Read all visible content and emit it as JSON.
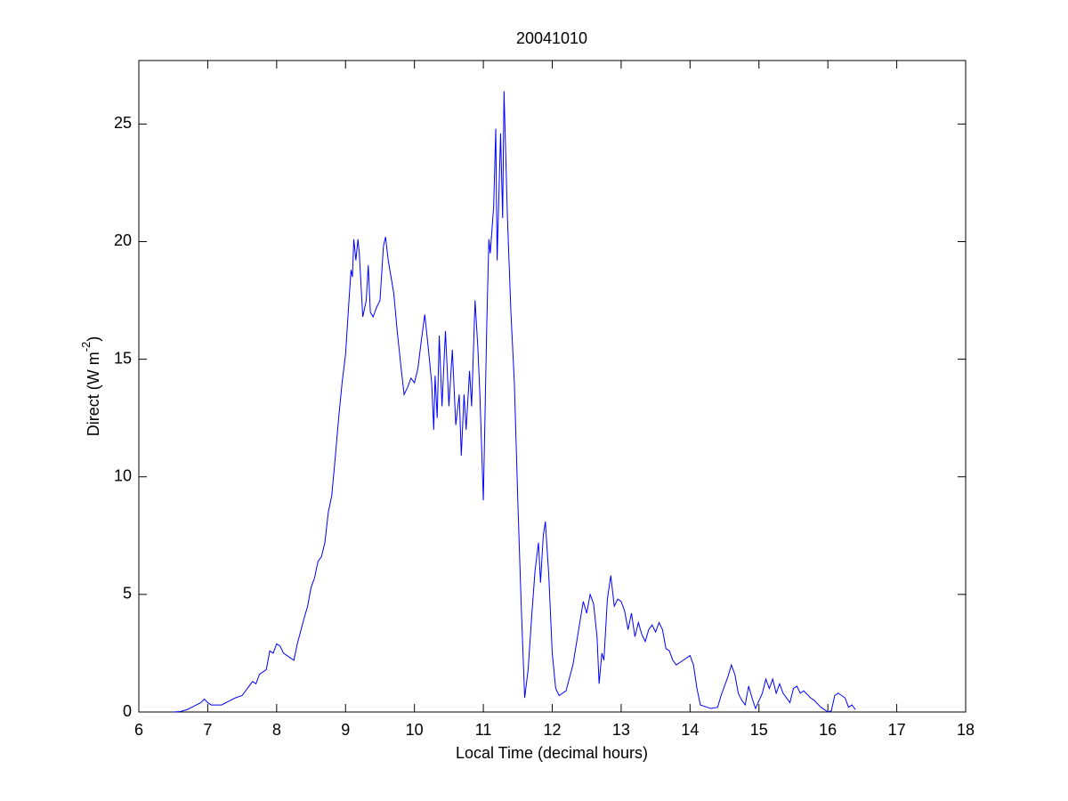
{
  "chart_data": {
    "type": "line",
    "title": "20041010",
    "xlabel": "Local Time (decimal hours)",
    "ylabel": {
      "text": "Direct (W m",
      "superscript": "-2",
      "suffix": ")"
    },
    "xlim": [
      6,
      18
    ],
    "ylim": [
      0,
      27.7
    ],
    "xticks": [
      6,
      7,
      8,
      9,
      10,
      11,
      12,
      13,
      14,
      15,
      16,
      17,
      18
    ],
    "yticks": [
      0,
      5,
      10,
      15,
      20,
      25
    ],
    "grid": false,
    "x": [
      6.5,
      6.6,
      6.7,
      6.8,
      6.9,
      6.95,
      7.0,
      7.05,
      7.2,
      7.3,
      7.4,
      7.5,
      7.6,
      7.65,
      7.7,
      7.75,
      7.85,
      7.9,
      7.95,
      8.0,
      8.05,
      8.1,
      8.2,
      8.25,
      8.3,
      8.4,
      8.45,
      8.5,
      8.55,
      8.6,
      8.65,
      8.7,
      8.75,
      8.8,
      8.85,
      8.9,
      8.95,
      9.0,
      9.05,
      9.08,
      9.1,
      9.12,
      9.15,
      9.18,
      9.2,
      9.25,
      9.3,
      9.33,
      9.36,
      9.4,
      9.45,
      9.5,
      9.55,
      9.58,
      9.62,
      9.7,
      9.75,
      9.8,
      9.85,
      9.9,
      9.95,
      10.0,
      10.05,
      10.1,
      10.15,
      10.2,
      10.25,
      10.28,
      10.3,
      10.33,
      10.36,
      10.4,
      10.45,
      10.5,
      10.55,
      10.6,
      10.65,
      10.68,
      10.72,
      10.75,
      10.8,
      10.83,
      10.88,
      10.92,
      10.95,
      11.0,
      11.05,
      11.08,
      11.1,
      11.15,
      11.18,
      11.2,
      11.25,
      11.28,
      11.3,
      11.35,
      11.4,
      11.45,
      11.5,
      11.55,
      11.6,
      11.65,
      11.7,
      11.75,
      11.8,
      11.83,
      11.87,
      11.9,
      11.95,
      12.0,
      12.05,
      12.1,
      12.2,
      12.3,
      12.4,
      12.45,
      12.5,
      12.55,
      12.6,
      12.65,
      12.68,
      12.72,
      12.75,
      12.8,
      12.85,
      12.9,
      12.95,
      13.0,
      13.05,
      13.1,
      13.15,
      13.2,
      13.25,
      13.3,
      13.35,
      13.4,
      13.45,
      13.5,
      13.55,
      13.6,
      13.65,
      13.7,
      13.75,
      13.8,
      13.9,
      14.0,
      14.05,
      14.1,
      14.15,
      14.3,
      14.4,
      14.45,
      14.55,
      14.6,
      14.65,
      14.7,
      14.75,
      14.8,
      14.85,
      14.9,
      14.95,
      15.05,
      15.1,
      15.15,
      15.2,
      15.25,
      15.3,
      15.35,
      15.45,
      15.5,
      15.55,
      15.6,
      15.65,
      15.75,
      15.8,
      15.9,
      16.0,
      16.05,
      16.1,
      16.15,
      16.2,
      16.25,
      16.3,
      16.35,
      16.4
    ],
    "series": [
      {
        "name": "Direct",
        "color": "#0000ff",
        "values": [
          0,
          0.02,
          0.1,
          0.25,
          0.4,
          0.55,
          0.4,
          0.3,
          0.3,
          0.45,
          0.6,
          0.7,
          1.1,
          1.3,
          1.2,
          1.6,
          1.8,
          2.6,
          2.5,
          2.9,
          2.8,
          2.5,
          2.3,
          2.2,
          2.9,
          4.0,
          4.5,
          5.3,
          5.7,
          6.4,
          6.6,
          7.2,
          8.5,
          9.2,
          10.8,
          12.5,
          14.0,
          15.2,
          17.5,
          18.8,
          18.5,
          20.1,
          19.2,
          20.1,
          19.5,
          16.8,
          17.5,
          19.0,
          17.0,
          16.8,
          17.2,
          17.5,
          19.8,
          20.2,
          19.2,
          17.8,
          16.2,
          14.8,
          13.5,
          13.8,
          14.2,
          14.0,
          14.6,
          15.8,
          16.9,
          15.5,
          14.0,
          12.0,
          14.3,
          12.5,
          16.0,
          13.0,
          16.2,
          13.0,
          15.4,
          12.2,
          13.5,
          10.9,
          13.5,
          12.0,
          14.5,
          13.0,
          17.5,
          15.5,
          13.5,
          9.0,
          16.5,
          20.1,
          19.5,
          21.5,
          24.8,
          19.2,
          24.6,
          21.0,
          26.4,
          21.0,
          17.0,
          14.0,
          9.0,
          4.5,
          0.6,
          1.8,
          4.0,
          6.0,
          7.2,
          5.5,
          7.5,
          8.1,
          5.8,
          2.5,
          1.0,
          0.7,
          0.9,
          2.0,
          3.8,
          4.7,
          4.2,
          5.0,
          4.6,
          3.2,
          1.2,
          2.5,
          2.2,
          4.8,
          5.8,
          4.5,
          4.8,
          4.7,
          4.3,
          3.5,
          4.2,
          3.2,
          3.8,
          3.3,
          3.0,
          3.5,
          3.7,
          3.4,
          3.8,
          3.5,
          2.7,
          2.6,
          2.2,
          2.0,
          2.2,
          2.4,
          2.0,
          1.0,
          0.3,
          0.15,
          0.2,
          0.7,
          1.5,
          2.0,
          1.6,
          0.8,
          0.5,
          0.3,
          1.1,
          0.6,
          0.15,
          0.8,
          1.4,
          1.0,
          1.4,
          0.8,
          1.2,
          0.8,
          0.4,
          1.0,
          1.1,
          0.8,
          0.9,
          0.6,
          0.5,
          0.2,
          0.0,
          0.05,
          0.7,
          0.8,
          0.7,
          0.6,
          0.2,
          0.3,
          0.1
        ]
      }
    ]
  }
}
